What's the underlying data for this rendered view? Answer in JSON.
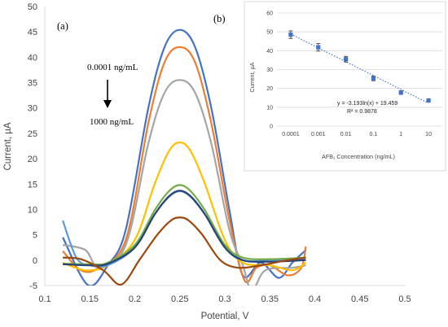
{
  "chart_data": [
    {
      "type": "line",
      "panel_label": "(a)",
      "xlabel": "Potential, V",
      "ylabel": "Current, µA",
      "xlim": [
        0.1,
        0.5
      ],
      "ylim": [
        -5,
        50
      ],
      "x_ticks": [
        "0.1",
        "0.15",
        "0.2",
        "0.25",
        "0.3",
        "0.35",
        "0.4",
        "0.45",
        "0.5"
      ],
      "y_ticks": [
        "-5",
        "0",
        "5",
        "10",
        "15",
        "20",
        "25",
        "30",
        "35",
        "40",
        "45",
        "50"
      ],
      "grid": false,
      "legend": "none",
      "annotation_top": "0.0001 ng/mL",
      "annotation_bottom": "1000 ng/mL",
      "series": [
        {
          "color": "#4472c4",
          "peak": 45.4,
          "points": [
            [
              0.12,
              4.5
            ],
            [
              0.148,
              -4.9
            ],
            [
              0.17,
              -1.0
            ],
            [
              0.19,
              6.0
            ],
            [
              0.215,
              30.0
            ],
            [
              0.233,
              42.0
            ],
            [
              0.25,
              45.4
            ],
            [
              0.267,
              42.0
            ],
            [
              0.285,
              30.0
            ],
            [
              0.305,
              10.0
            ],
            [
              0.32,
              -3.0
            ],
            [
              0.34,
              -0.5
            ],
            [
              0.36,
              -3.5
            ],
            [
              0.375,
              -0.5
            ],
            [
              0.39,
              2.0
            ]
          ]
        },
        {
          "color": "#ed7d31",
          "peak": 42.0,
          "points": [
            [
              0.12,
              1.8
            ],
            [
              0.14,
              -2.0
            ],
            [
              0.16,
              -1.5
            ],
            [
              0.19,
              4.0
            ],
            [
              0.215,
              27.0
            ],
            [
              0.233,
              39.0
            ],
            [
              0.25,
              42.0
            ],
            [
              0.267,
              39.0
            ],
            [
              0.285,
              27.0
            ],
            [
              0.305,
              8.0
            ],
            [
              0.322,
              -4.0
            ],
            [
              0.335,
              -1.5
            ],
            [
              0.35,
              -1.0
            ],
            [
              0.37,
              -3.0
            ],
            [
              0.385,
              -1.5
            ],
            [
              0.39,
              2.7
            ]
          ]
        },
        {
          "color": "#a5a5a5",
          "peak": 35.5,
          "points": [
            [
              0.12,
              3.0
            ],
            [
              0.145,
              2.0
            ],
            [
              0.16,
              -1.3
            ],
            [
              0.19,
              3.0
            ],
            [
              0.215,
              23.0
            ],
            [
              0.233,
              33.0
            ],
            [
              0.25,
              35.5
            ],
            [
              0.267,
              33.0
            ],
            [
              0.285,
              23.0
            ],
            [
              0.305,
              6.0
            ],
            [
              0.32,
              -1.0
            ],
            [
              0.33,
              -6.0
            ],
            [
              0.345,
              -2.0
            ],
            [
              0.375,
              -1.5
            ],
            [
              0.39,
              -1.0
            ]
          ]
        },
        {
          "color": "#ffc000",
          "peak": 23.2,
          "points": [
            [
              0.12,
              -0.5
            ],
            [
              0.145,
              -2.0
            ],
            [
              0.17,
              -1.0
            ],
            [
              0.2,
              4.0
            ],
            [
              0.222,
              15.0
            ],
            [
              0.238,
              21.5
            ],
            [
              0.25,
              23.2
            ],
            [
              0.262,
              21.5
            ],
            [
              0.278,
              15.0
            ],
            [
              0.3,
              4.0
            ],
            [
              0.32,
              -0.5
            ],
            [
              0.35,
              -1.0
            ],
            [
              0.375,
              -2.0
            ],
            [
              0.39,
              -0.5
            ]
          ]
        },
        {
          "color": "#5b9bd5",
          "peak": 13.6,
          "points": [
            [
              0.12,
              7.8
            ],
            [
              0.135,
              0.5
            ],
            [
              0.15,
              -1.0
            ],
            [
              0.17,
              -1.0
            ],
            [
              0.2,
              2.5
            ],
            [
              0.222,
              9.0
            ],
            [
              0.238,
              12.5
            ],
            [
              0.25,
              13.6
            ],
            [
              0.262,
              12.5
            ],
            [
              0.278,
              9.0
            ],
            [
              0.3,
              3.0
            ],
            [
              0.32,
              0.0
            ],
            [
              0.35,
              0.0
            ],
            [
              0.39,
              0.2
            ]
          ]
        },
        {
          "color": "#70ad47",
          "peak": 14.8,
          "points": [
            [
              0.12,
              -0.7
            ],
            [
              0.15,
              -0.8
            ],
            [
              0.17,
              -0.5
            ],
            [
              0.2,
              3.0
            ],
            [
              0.222,
              9.8
            ],
            [
              0.238,
              13.6
            ],
            [
              0.25,
              14.8
            ],
            [
              0.262,
              13.6
            ],
            [
              0.278,
              9.8
            ],
            [
              0.3,
              3.0
            ],
            [
              0.32,
              0.5
            ],
            [
              0.35,
              0.2
            ],
            [
              0.39,
              0.5
            ]
          ]
        },
        {
          "color": "#264478",
          "peak": 13.7,
          "points": [
            [
              0.12,
              -0.8
            ],
            [
              0.15,
              -1.0
            ],
            [
              0.17,
              -0.7
            ],
            [
              0.2,
              2.5
            ],
            [
              0.222,
              9.0
            ],
            [
              0.238,
              12.6
            ],
            [
              0.25,
              13.7
            ],
            [
              0.262,
              12.6
            ],
            [
              0.278,
              9.0
            ],
            [
              0.3,
              2.5
            ],
            [
              0.32,
              0.0
            ],
            [
              0.35,
              -0.3
            ],
            [
              0.39,
              0.0
            ]
          ]
        },
        {
          "color": "#9e480e",
          "peak": 8.4,
          "points": [
            [
              0.12,
              0.5
            ],
            [
              0.14,
              0.2
            ],
            [
              0.165,
              -2.0
            ],
            [
              0.185,
              -4.8
            ],
            [
              0.205,
              0.0
            ],
            [
              0.225,
              5.0
            ],
            [
              0.24,
              7.8
            ],
            [
              0.25,
              8.4
            ],
            [
              0.26,
              7.8
            ],
            [
              0.275,
              5.0
            ],
            [
              0.295,
              0.0
            ],
            [
              0.315,
              -1.5
            ],
            [
              0.34,
              -1.0
            ],
            [
              0.37,
              0.0
            ],
            [
              0.39,
              0.5
            ]
          ]
        }
      ]
    },
    {
      "type": "scatter",
      "panel_label": "(b)",
      "xlabel": "AFB₁ Concentration  (ng/mL)",
      "ylabel": "Current, µA",
      "x_scale": "log",
      "x": [
        0.0001,
        0.001,
        0.01,
        0.1,
        1,
        10
      ],
      "x_ticks": [
        "0.0001",
        "0.001",
        "0.01",
        "0.1",
        "1",
        "10"
      ],
      "y_ticks": [
        "0",
        "10",
        "20",
        "30",
        "40",
        "50",
        "60"
      ],
      "ylim": [
        0,
        60
      ],
      "values": [
        48.5,
        41.8,
        35.5,
        25.3,
        17.8,
        13.6
      ],
      "errors": [
        2.0,
        2.0,
        1.5,
        1.2,
        1.0,
        0.8
      ],
      "marker_color": "#4472c4",
      "grid": true,
      "trendline": {
        "type": "logarithmic",
        "a": -3.193,
        "b": 19.459
      },
      "equation": "y = -3.193ln(x) + 19.459",
      "r_squared": "R² = 0.9878"
    }
  ]
}
